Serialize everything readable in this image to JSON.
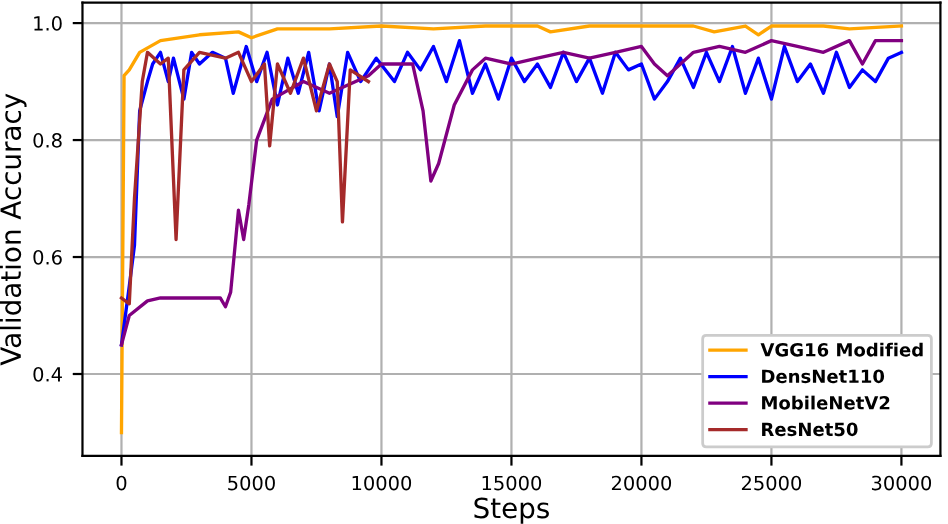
{
  "chart_data": {
    "type": "line",
    "xlabel": "Steps",
    "ylabel": "Validation Accuracy",
    "xlim": [
      -1500,
      31500
    ],
    "ylim": [
      0.26,
      1.035
    ],
    "xticks": [
      0,
      5000,
      10000,
      15000,
      20000,
      25000,
      30000
    ],
    "yticks": [
      0.4,
      0.6,
      0.8,
      {
        "value": 1,
        "label": "1.0"
      }
    ],
    "grid": true,
    "legend": "bottom right",
    "line_style": "solid",
    "marker": "none",
    "series": [
      {
        "name": "VGG16 Modified",
        "color": "#ffa500",
        "x": [
          0,
          100,
          300,
          700,
          1500,
          3000,
          4500,
          5000,
          6000,
          8000,
          10000,
          12000,
          14000,
          16000,
          16500,
          18000,
          20000,
          22000,
          22800,
          24000,
          24500,
          25000,
          27000,
          28000,
          30000
        ],
        "values": [
          0.3,
          0.91,
          0.92,
          0.95,
          0.97,
          0.98,
          0.985,
          0.975,
          0.99,
          0.99,
          0.995,
          0.99,
          0.995,
          0.995,
          0.985,
          0.995,
          0.995,
          0.995,
          0.985,
          0.995,
          0.98,
          0.995,
          0.995,
          0.99,
          0.995
        ]
      },
      {
        "name": "DensNet110",
        "color": "#0000ff",
        "x": [
          0,
          300,
          500,
          700,
          1000,
          1200,
          1500,
          1800,
          2000,
          2400,
          2700,
          3000,
          3500,
          4000,
          4300,
          4800,
          5200,
          5600,
          6000,
          6400,
          6800,
          7200,
          7600,
          8000,
          8300,
          8700,
          9200,
          9800,
          10500,
          11000,
          11500,
          12000,
          12500,
          13000,
          13500,
          14000,
          14500,
          15000,
          15500,
          16000,
          16500,
          17000,
          17500,
          18000,
          18500,
          19000,
          19500,
          20000,
          20500,
          21000,
          21500,
          22000,
          22500,
          23000,
          23500,
          24000,
          24500,
          25000,
          25500,
          26000,
          26500,
          27000,
          27500,
          28000,
          28500,
          29000,
          29500,
          30000
        ],
        "values": [
          0.45,
          0.55,
          0.62,
          0.85,
          0.9,
          0.93,
          0.95,
          0.9,
          0.94,
          0.87,
          0.95,
          0.93,
          0.95,
          0.94,
          0.88,
          0.96,
          0.9,
          0.95,
          0.86,
          0.94,
          0.88,
          0.95,
          0.85,
          0.93,
          0.84,
          0.95,
          0.9,
          0.94,
          0.9,
          0.95,
          0.92,
          0.96,
          0.9,
          0.97,
          0.88,
          0.93,
          0.87,
          0.94,
          0.9,
          0.93,
          0.89,
          0.95,
          0.9,
          0.94,
          0.88,
          0.95,
          0.92,
          0.93,
          0.87,
          0.9,
          0.94,
          0.89,
          0.95,
          0.9,
          0.96,
          0.88,
          0.94,
          0.87,
          0.96,
          0.9,
          0.93,
          0.88,
          0.95,
          0.89,
          0.92,
          0.9,
          0.94,
          0.95
        ]
      },
      {
        "name": "MobileNetV2",
        "color": "#800080",
        "x": [
          0,
          300,
          1000,
          1500,
          3800,
          4000,
          4200,
          4500,
          4700,
          4900,
          5200,
          5800,
          7000,
          8000,
          9500,
          10000,
          11200,
          11600,
          11900,
          12200,
          12800,
          13500,
          14000,
          15000,
          16000,
          17000,
          18000,
          19000,
          20000,
          20500,
          21000,
          22000,
          23000,
          24000,
          25000,
          26000,
          27000,
          28000,
          28500,
          29000,
          30000
        ],
        "values": [
          0.45,
          0.5,
          0.525,
          0.53,
          0.53,
          0.515,
          0.54,
          0.68,
          0.63,
          0.69,
          0.8,
          0.87,
          0.9,
          0.88,
          0.91,
          0.93,
          0.93,
          0.85,
          0.73,
          0.76,
          0.86,
          0.92,
          0.94,
          0.93,
          0.94,
          0.95,
          0.94,
          0.95,
          0.96,
          0.93,
          0.91,
          0.95,
          0.96,
          0.95,
          0.97,
          0.96,
          0.95,
          0.97,
          0.93,
          0.97,
          0.97
        ]
      },
      {
        "name": "ResNet50",
        "color": "#a52a2a",
        "x": [
          0,
          300,
          500,
          800,
          1000,
          1500,
          1800,
          2100,
          2400,
          3000,
          4000,
          4500,
          5000,
          5500,
          5700,
          6000,
          6500,
          7000,
          7500,
          8000,
          8300,
          8500,
          8800,
          9500
        ],
        "values": [
          0.53,
          0.52,
          0.7,
          0.9,
          0.95,
          0.93,
          0.94,
          0.63,
          0.92,
          0.95,
          0.94,
          0.95,
          0.9,
          0.93,
          0.79,
          0.93,
          0.88,
          0.94,
          0.85,
          0.93,
          0.9,
          0.66,
          0.92,
          0.9
        ]
      }
    ]
  }
}
